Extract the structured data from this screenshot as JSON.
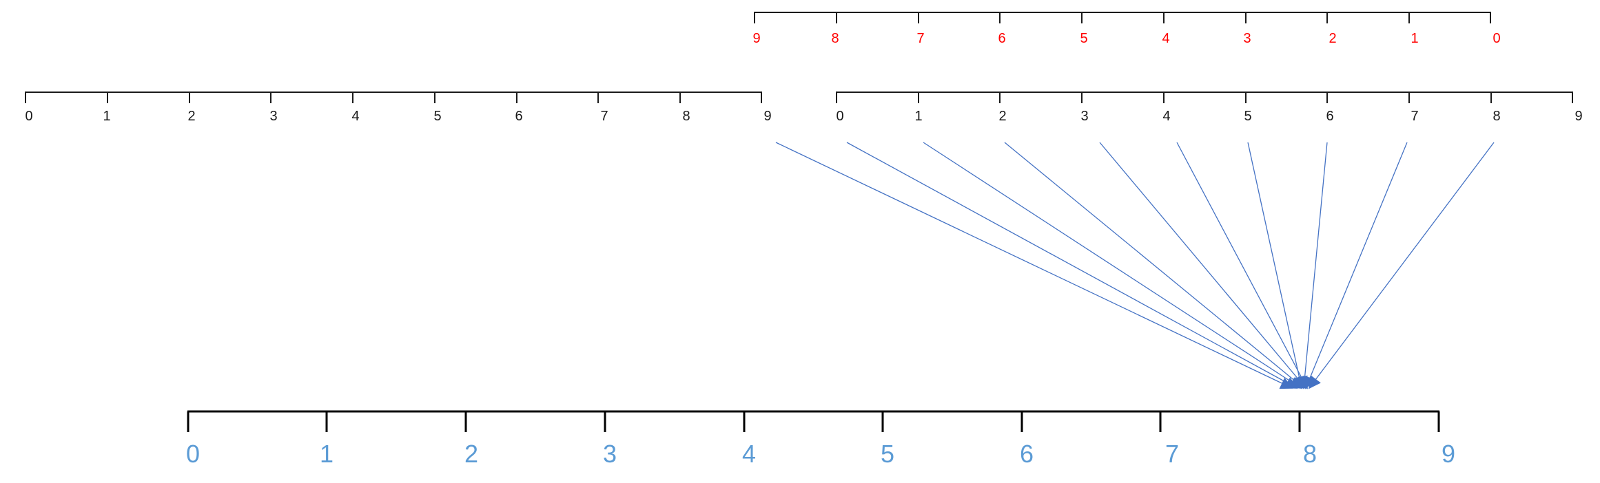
{
  "scales": {
    "top_red": {
      "labels": [
        "9",
        "8",
        "7",
        "6",
        "5",
        "4",
        "3",
        "2",
        "1",
        "0"
      ],
      "label_color": "#ff0000"
    },
    "middle_left": {
      "labels": [
        "0",
        "1",
        "2",
        "3",
        "4",
        "5",
        "6",
        "7",
        "8",
        "9"
      ],
      "label_color": "#1a1a1a"
    },
    "middle_right": {
      "labels": [
        "0",
        "1",
        "2",
        "3",
        "4",
        "5",
        "6",
        "7",
        "8",
        "9"
      ],
      "label_color": "#1a1a1a"
    },
    "bottom": {
      "labels": [
        "0",
        "1",
        "2",
        "3",
        "4",
        "5",
        "6",
        "7",
        "8",
        "9"
      ],
      "label_color": "#5b9bd5"
    }
  },
  "arrows": {
    "color": "#4472c4",
    "count": 10,
    "target_value": 8
  }
}
